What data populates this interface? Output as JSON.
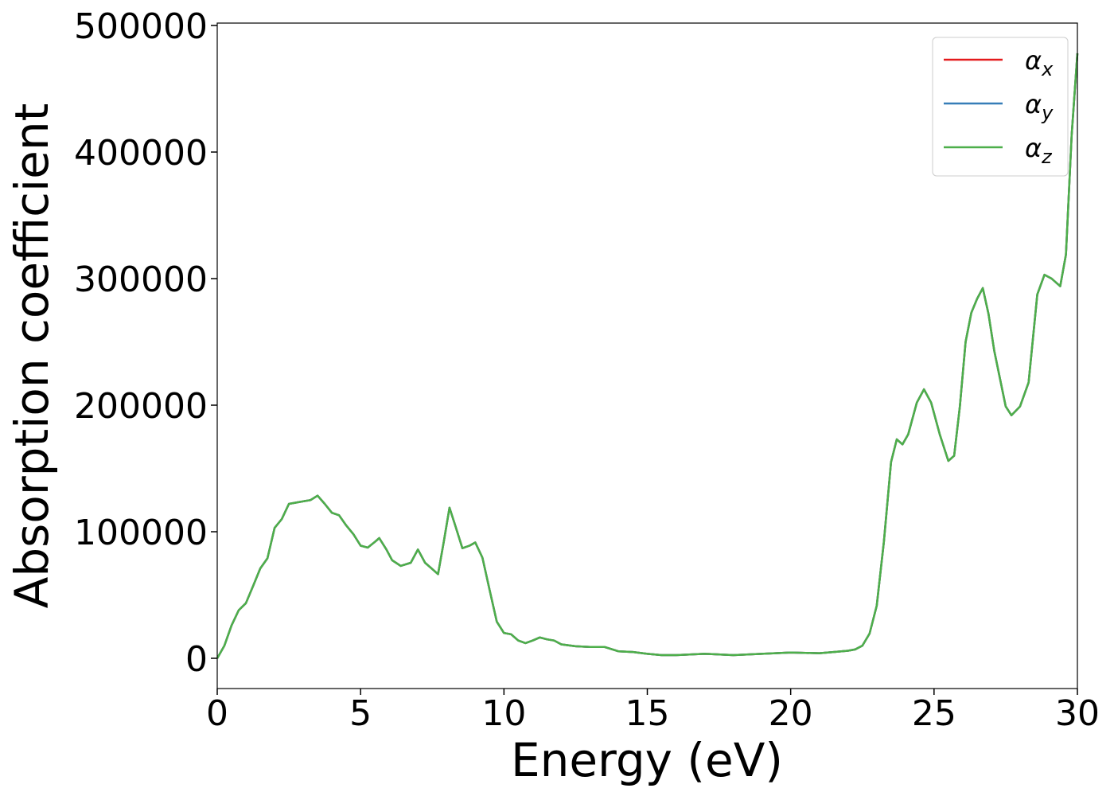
{
  "chart_data": {
    "type": "line",
    "x_label": "Energy (eV)",
    "y_label": "Absorption coefficient",
    "x": [
      0,
      0.25,
      0.5,
      0.75,
      1,
      1.25,
      1.5,
      1.75,
      2,
      2.25,
      2.5,
      2.75,
      3,
      3.25,
      3.5,
      3.75,
      4,
      4.25,
      4.5,
      4.75,
      5,
      5.25,
      5.5,
      5.65,
      5.9,
      6.1,
      6.4,
      6.75,
      7,
      7.25,
      7.5,
      7.7,
      7.9,
      8.1,
      8.3,
      8.55,
      8.8,
      9,
      9.25,
      9.5,
      9.75,
      10,
      10.25,
      10.5,
      10.75,
      11,
      11.25,
      11.5,
      11.75,
      12,
      12.5,
      13,
      13.5,
      14,
      14.5,
      15,
      15.5,
      16,
      17,
      18,
      19,
      20,
      21,
      21.5,
      22,
      22.25,
      22.5,
      22.75,
      23,
      23.25,
      23.5,
      23.7,
      23.9,
      24.1,
      24.4,
      24.65,
      24.9,
      25.2,
      25.5,
      25.7,
      25.9,
      26.1,
      26.3,
      26.5,
      26.7,
      26.9,
      27.1,
      27.3,
      27.5,
      27.7,
      28,
      28.3,
      28.6,
      28.85,
      29.1,
      29.4,
      29.6,
      29.8,
      30
    ],
    "series": [
      {
        "name": "αx",
        "color": "#e41a1c",
        "values": [
          0,
          10000,
          26000,
          38000,
          43500,
          57000,
          71000,
          79000,
          103000,
          110000,
          122000,
          123000,
          124000,
          125000,
          128500,
          122000,
          115000,
          113000,
          105000,
          98000,
          89000,
          87500,
          92000,
          95000,
          86000,
          77500,
          73000,
          75500,
          86000,
          75500,
          70500,
          66500,
          92000,
          119000,
          105000,
          87000,
          89000,
          91500,
          79500,
          54000,
          29000,
          20000,
          19000,
          14000,
          12000,
          14000,
          16500,
          15000,
          14000,
          11000,
          9500,
          9000,
          9000,
          5500,
          5000,
          3500,
          2500,
          2500,
          3500,
          2500,
          3500,
          4500,
          4000,
          5000,
          6000,
          7000,
          10000,
          19500,
          41500,
          92000,
          155000,
          173000,
          169000,
          177000,
          202000,
          212500,
          202000,
          177000,
          156000,
          160000,
          199000,
          250000,
          273000,
          284000,
          292500,
          272000,
          243000,
          221000,
          199000,
          192000,
          199000,
          218000,
          287500,
          303000,
          300000,
          294000,
          319000,
          413500,
          478000
        ]
      },
      {
        "name": "αy",
        "color": "#377eb8",
        "values": [
          0,
          10000,
          26000,
          38000,
          43500,
          57000,
          71000,
          79000,
          103000,
          110000,
          122000,
          123000,
          124000,
          125000,
          128500,
          122000,
          115000,
          113000,
          105000,
          98000,
          89000,
          87500,
          92000,
          95000,
          86000,
          77500,
          73000,
          75500,
          86000,
          75500,
          70500,
          66500,
          92000,
          119000,
          105000,
          87000,
          89000,
          91500,
          79500,
          54000,
          29000,
          20000,
          19000,
          14000,
          12000,
          14000,
          16500,
          15000,
          14000,
          11000,
          9500,
          9000,
          9000,
          5500,
          5000,
          3500,
          2500,
          2500,
          3500,
          2500,
          3500,
          4500,
          4000,
          5000,
          6000,
          7000,
          10000,
          19500,
          41500,
          92000,
          155000,
          173000,
          169000,
          177000,
          202000,
          212500,
          202000,
          177000,
          156000,
          160000,
          199000,
          250000,
          273000,
          284000,
          292500,
          272000,
          243000,
          221000,
          199000,
          192000,
          199000,
          218000,
          287500,
          303000,
          300000,
          294000,
          319000,
          413500,
          478000
        ]
      },
      {
        "name": "αz",
        "color": "#4daf4a",
        "values": [
          0,
          10000,
          26000,
          38000,
          43500,
          57000,
          71000,
          79000,
          103000,
          110000,
          122000,
          123000,
          124000,
          125000,
          128500,
          122000,
          115000,
          113000,
          105000,
          98000,
          89000,
          87500,
          92000,
          95000,
          86000,
          77500,
          73000,
          75500,
          86000,
          75500,
          70500,
          66500,
          92000,
          119000,
          105000,
          87000,
          89000,
          91500,
          79500,
          54000,
          29000,
          20000,
          19000,
          14000,
          12000,
          14000,
          16500,
          15000,
          14000,
          11000,
          9500,
          9000,
          9000,
          5500,
          5000,
          3500,
          2500,
          2500,
          3500,
          2500,
          3500,
          4500,
          4000,
          5000,
          6000,
          7000,
          10000,
          19500,
          41500,
          92000,
          155000,
          173000,
          169000,
          177000,
          202000,
          212500,
          202000,
          177000,
          156000,
          160000,
          199000,
          250000,
          273000,
          284000,
          292500,
          272000,
          243000,
          221000,
          199000,
          192000,
          199000,
          218000,
          287500,
          303000,
          300000,
          294000,
          319000,
          413500,
          478000
        ]
      }
    ],
    "xlim": [
      0,
      30
    ],
    "xticks": [
      0,
      5,
      10,
      15,
      20,
      25,
      30
    ],
    "ylim": [
      -23900,
      501900
    ],
    "yticks": [
      0,
      100000,
      200000,
      300000,
      400000,
      500000
    ],
    "grid": false,
    "legend": "upper right"
  }
}
